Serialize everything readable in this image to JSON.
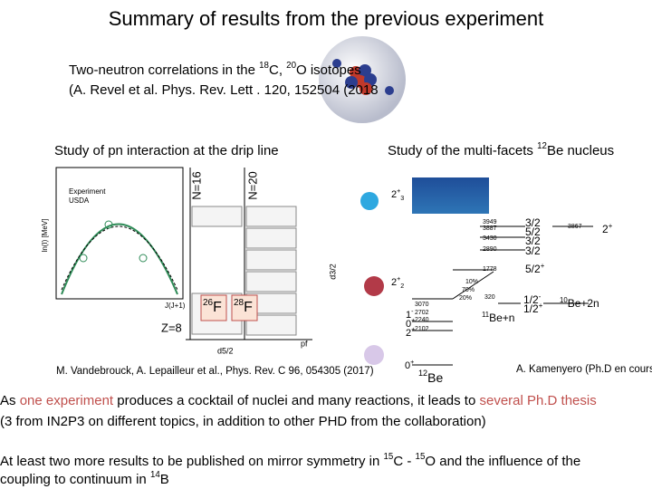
{
  "title": "Summary of results from the previous experiment",
  "reference": {
    "line1": [
      "Two-neutron correlations in the ",
      {
        "sup": "18"
      },
      "C, ",
      {
        "sup": "20"
      },
      "O isotopes"
    ],
    "line2": "(A. Revel et al. Phys. Rev. Lett . 120, 152504 (2018"
  },
  "left_heading": "Study of pn interaction at the drip line",
  "right_heading": [
    "Study of the multi-facets ",
    {
      "sup": "12"
    },
    "Be nucleus"
  ],
  "left_figure": {
    "legend": [
      "Experiment",
      "USDA"
    ],
    "y_axis_label": "ln(I) [MeV]",
    "x_axis_label": "J(J+1)",
    "shell_labels": [
      "N=16",
      "N=20",
      "Z=8"
    ],
    "orbitals": [
      "d3/2",
      "d5/2",
      "pf"
    ],
    "nuclei": [
      [
        "26",
        "F"
      ],
      [
        "28",
        "F"
      ]
    ],
    "reference": "M. Vandebrouck, A. Lepailleur et al., Phys. Rev. C 96, 054305 (2017)"
  },
  "level_scheme": {
    "states": [
      [
        "2",
        {
          "sup": "+"
        },
        {
          "sub": "3"
        }
      ],
      [
        "2",
        {
          "sup": "+"
        },
        {
          "sub": "2"
        }
      ],
      [
        "1",
        {
          "sup": "-"
        }
      ],
      [
        "0",
        {
          "sup": "+"
        }
      ],
      [
        "2",
        {
          "sup": "+"
        }
      ],
      [
        "0",
        {
          "sup": "+"
        }
      ]
    ],
    "energies": [
      "3949",
      "3887",
      "3430",
      "2890",
      "1778",
      "3070",
      "2702",
      "2240",
      "2102",
      "320",
      "3867"
    ],
    "branchings": [
      "10%",
      "70%",
      "20%"
    ],
    "spins": [
      "3/2",
      "5/2",
      "3/2",
      "3/2",
      [
        "5/2",
        {
          "sup": "+"
        }
      ],
      [
        "1/2",
        {
          "sup": "-"
        }
      ],
      [
        "1/2",
        {
          "sup": "+"
        }
      ],
      [
        "2",
        {
          "sup": "+"
        }
      ]
    ],
    "thresholds": [
      [
        {
          "sup": "11"
        },
        "Be+n"
      ],
      [
        {
          "sup": "10"
        },
        "Be+2n"
      ]
    ],
    "nucleus": [
      {
        "sup": "12"
      },
      "Be"
    ],
    "reference": "A. Kamenyero (Ph.D en cours)"
  },
  "paragraphs": [
    [
      [
        "As ",
        {
          "text": "one experiment",
          "color": "#c0504d"
        },
        " produces a cocktail of nuclei and many reactions, it leads to ",
        {
          "text": "several Ph.D thesis",
          "color": "#c0504d"
        }
      ],
      "(3 from IN2P3 on different topics,  in addition to other PHD  from the collaboration)"
    ],
    [
      [
        "At least two more results to be published on mirror symmetry in ",
        {
          "sup": "15"
        },
        "C - ",
        {
          "sup": "15"
        },
        "O and the influence of the"
      ],
      [
        " coupling to continuum in ",
        {
          "sup": "14"
        },
        "B"
      ]
    ]
  ]
}
